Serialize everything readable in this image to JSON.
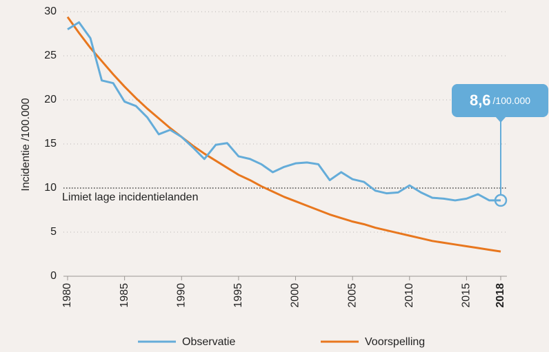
{
  "chart_data": {
    "type": "line",
    "y_label": "Incidentie /100.000",
    "x": [
      1980,
      1981,
      1982,
      1983,
      1984,
      1985,
      1986,
      1987,
      1988,
      1989,
      1990,
      1991,
      1992,
      1993,
      1994,
      1995,
      1996,
      1997,
      1998,
      1999,
      2000,
      2001,
      2002,
      2003,
      2004,
      2005,
      2006,
      2007,
      2008,
      2009,
      2010,
      2011,
      2012,
      2013,
      2014,
      2015,
      2016,
      2017,
      2018
    ],
    "series": [
      {
        "name": "Observatie",
        "color": "#64acd9",
        "values": [
          28.0,
          28.8,
          27.0,
          22.2,
          21.9,
          19.8,
          19.3,
          18.0,
          16.1,
          16.6,
          15.8,
          14.6,
          13.3,
          14.9,
          15.1,
          13.6,
          13.3,
          12.7,
          11.8,
          12.4,
          12.8,
          12.9,
          12.7,
          10.9,
          11.8,
          11.0,
          10.7,
          9.7,
          9.4,
          9.5,
          10.3,
          9.5,
          8.9,
          8.8,
          8.6,
          8.8,
          9.3,
          8.6,
          8.6
        ]
      },
      {
        "name": "Voorspelling",
        "color": "#e8771e",
        "values": [
          29.4,
          27.6,
          25.9,
          24.4,
          22.9,
          21.5,
          20.2,
          19.0,
          17.9,
          16.8,
          15.8,
          14.8,
          13.9,
          13.1,
          12.3,
          11.5,
          10.9,
          10.2,
          9.6,
          9.0,
          8.5,
          8.0,
          7.5,
          7.0,
          6.6,
          6.2,
          5.9,
          5.5,
          5.2,
          4.9,
          4.6,
          4.3,
          4.0,
          3.8,
          3.6,
          3.4,
          3.2,
          3.0,
          2.8
        ]
      }
    ],
    "xlim": [
      1980,
      2018
    ],
    "xticks": [
      1980,
      1985,
      1990,
      1995,
      2000,
      2005,
      2010,
      2015,
      2018
    ],
    "ylim": [
      0,
      30
    ],
    "yticks": [
      0,
      5,
      10,
      15,
      20,
      25,
      30
    ],
    "grid": true,
    "threshold": {
      "value": 10,
      "label": "Limiet lage incidentielanden"
    },
    "annotation": {
      "x": 2018,
      "value": 8.6,
      "label": "8,6",
      "unit": "/100.000"
    }
  }
}
